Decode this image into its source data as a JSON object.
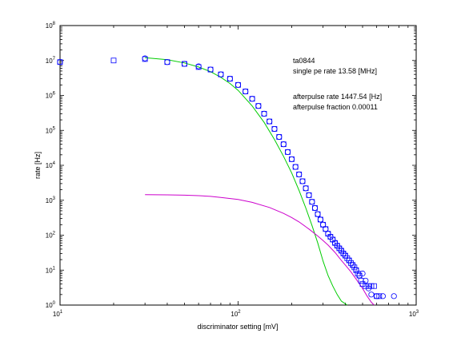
{
  "chart_data": {
    "type": "scatter",
    "title": "",
    "xlabel": "discriminator setting [mV]",
    "ylabel": "rate [Hz]",
    "x_scale": "log",
    "y_scale": "log",
    "xlim": [
      10,
      1000
    ],
    "ylim": [
      1,
      100000000
    ],
    "grid": false,
    "x_ticks": [
      {
        "value": 10,
        "base": "10",
        "exp": "1"
      },
      {
        "value": 100,
        "base": "10",
        "exp": "2"
      },
      {
        "value": 1000,
        "base": "10",
        "exp": "3"
      }
    ],
    "y_ticks": [
      {
        "value": 1,
        "base": "10",
        "exp": "0"
      },
      {
        "value": 10,
        "base": "10",
        "exp": "1"
      },
      {
        "value": 100,
        "base": "10",
        "exp": "2"
      },
      {
        "value": 1000,
        "base": "10",
        "exp": "3"
      },
      {
        "value": 10000,
        "base": "10",
        "exp": "4"
      },
      {
        "value": 100000,
        "base": "10",
        "exp": "5"
      },
      {
        "value": 1000000,
        "base": "10",
        "exp": "6"
      },
      {
        "value": 10000000,
        "base": "10",
        "exp": "7"
      },
      {
        "value": 100000000,
        "base": "10",
        "exp": "8"
      }
    ],
    "annotations": [
      "ta0844",
      "single pe rate 13.58 [MHz]",
      "afterpulse rate 1447.54 [Hz]",
      "afterpulse fraction 0.00011"
    ],
    "series": [
      {
        "marker": "square",
        "color": "#0000ff",
        "points": [
          [
            10,
            9000000.0
          ],
          [
            20,
            10000000.0
          ],
          [
            30,
            11000000.0
          ],
          [
            40,
            9000000.0
          ],
          [
            50,
            8000000.0
          ],
          [
            60,
            6500000.0
          ],
          [
            70,
            5500000.0
          ],
          [
            80,
            4000000.0
          ],
          [
            90,
            3000000.0
          ],
          [
            100,
            2000000.0
          ],
          [
            110,
            1300000.0
          ],
          [
            120,
            800000.0
          ],
          [
            130,
            500000.0
          ],
          [
            140,
            300000.0
          ],
          [
            150,
            180000.0
          ],
          [
            160,
            110000.0
          ],
          [
            170,
            65000.0
          ],
          [
            180,
            40000.0
          ],
          [
            190,
            24000.0
          ],
          [
            200,
            15000.0
          ],
          [
            210,
            9000.0
          ],
          [
            220,
            5500.0
          ],
          [
            230,
            3500.0
          ],
          [
            240,
            2200.0
          ],
          [
            250,
            1400.0
          ],
          [
            260,
            900.0
          ],
          [
            270,
            600.0
          ],
          [
            280,
            400.0
          ],
          [
            290,
            280.0
          ],
          [
            300,
            200.0
          ],
          [
            310,
            150.0
          ],
          [
            320,
            110.0
          ],
          [
            330,
            90
          ],
          [
            340,
            75
          ],
          [
            350,
            60
          ],
          [
            360,
            50
          ],
          [
            370,
            42
          ],
          [
            380,
            36
          ],
          [
            390,
            30
          ],
          [
            400,
            26
          ],
          [
            410,
            22
          ],
          [
            420,
            19
          ],
          [
            430,
            16
          ],
          [
            440,
            14
          ],
          [
            450,
            12
          ],
          [
            460,
            10
          ],
          [
            470,
            8
          ],
          [
            480,
            7
          ],
          [
            490,
            5
          ],
          [
            500,
            4
          ],
          [
            520,
            3.5
          ],
          [
            540,
            3.5
          ],
          [
            560,
            3.5
          ],
          [
            580,
            3.5
          ],
          [
            600,
            1.8
          ],
          [
            620,
            1.8
          ]
        ]
      },
      {
        "marker": "circle",
        "color": "#0000ff",
        "points": [
          [
            10,
            9000000.0
          ],
          [
            30,
            11500000.0
          ],
          [
            40,
            9000000.0
          ],
          [
            50,
            8000000.0
          ],
          [
            60,
            6800000.0
          ],
          [
            70,
            5500000.0
          ],
          [
            80,
            4000000.0
          ],
          [
            90,
            3000000.0
          ],
          [
            100,
            2000000.0
          ],
          [
            110,
            1300000.0
          ],
          [
            120,
            800000.0
          ],
          [
            130,
            500000.0
          ],
          [
            140,
            300000.0
          ],
          [
            150,
            180000.0
          ],
          [
            160,
            110000.0
          ],
          [
            170,
            65000.0
          ],
          [
            180,
            40000.0
          ],
          [
            190,
            24000.0
          ],
          [
            200,
            15000.0
          ],
          [
            210,
            9000.0
          ],
          [
            220,
            5500.0
          ],
          [
            230,
            3500.0
          ],
          [
            240,
            2200.0
          ],
          [
            250,
            1400.0
          ],
          [
            260,
            900.0
          ],
          [
            270,
            600.0
          ],
          [
            280,
            400.0
          ],
          [
            290,
            280.0
          ],
          [
            300,
            200.0
          ],
          [
            310,
            150.0
          ],
          [
            320,
            110.0
          ],
          [
            330,
            90
          ],
          [
            340,
            75
          ],
          [
            350,
            60
          ],
          [
            360,
            50
          ],
          [
            370,
            42
          ],
          [
            380,
            36
          ],
          [
            390,
            30
          ],
          [
            400,
            26
          ],
          [
            420,
            19
          ],
          [
            440,
            14
          ],
          [
            460,
            10
          ],
          [
            480,
            7
          ],
          [
            500,
            8
          ],
          [
            520,
            5
          ],
          [
            540,
            3
          ],
          [
            560,
            2
          ],
          [
            600,
            1.8
          ],
          [
            650,
            1.8
          ],
          [
            750,
            1.8
          ]
        ]
      }
    ],
    "curves": [
      {
        "color": "#00cc00",
        "points": [
          [
            30,
            12000000.0
          ],
          [
            40,
            10500000.0
          ],
          [
            50,
            8500000.0
          ],
          [
            60,
            6500000.0
          ],
          [
            70,
            4800000.0
          ],
          [
            80,
            3300000.0
          ],
          [
            90,
            2200000.0
          ],
          [
            100,
            1400000.0
          ],
          [
            120,
            500000.0
          ],
          [
            140,
            170000.0
          ],
          [
            160,
            55000.0
          ],
          [
            180,
            18000.0
          ],
          [
            200,
            6000.0
          ],
          [
            220,
            1900.0
          ],
          [
            240,
            600.0
          ],
          [
            260,
            190.0
          ],
          [
            280,
            60
          ],
          [
            300,
            18
          ],
          [
            320,
            7
          ],
          [
            340,
            3.5
          ],
          [
            360,
            2
          ],
          [
            380,
            1.3
          ],
          [
            410,
            1.0
          ]
        ]
      },
      {
        "color": "#cc00cc",
        "points": [
          [
            30,
            1450
          ],
          [
            40,
            1430
          ],
          [
            50,
            1400
          ],
          [
            60,
            1350
          ],
          [
            70,
            1290
          ],
          [
            80,
            1200
          ],
          [
            100,
            1050
          ],
          [
            120,
            870
          ],
          [
            150,
            620
          ],
          [
            180,
            420
          ],
          [
            200,
            320
          ],
          [
            220,
            240
          ],
          [
            250,
            150
          ],
          [
            280,
            95
          ],
          [
            300,
            70
          ],
          [
            320,
            52
          ],
          [
            350,
            32
          ],
          [
            380,
            19
          ],
          [
            400,
            14
          ],
          [
            430,
            9
          ],
          [
            460,
            5.5
          ],
          [
            500,
            3
          ],
          [
            530,
            1.8
          ],
          [
            560,
            1.2
          ],
          [
            580,
            1.0
          ]
        ]
      }
    ]
  }
}
